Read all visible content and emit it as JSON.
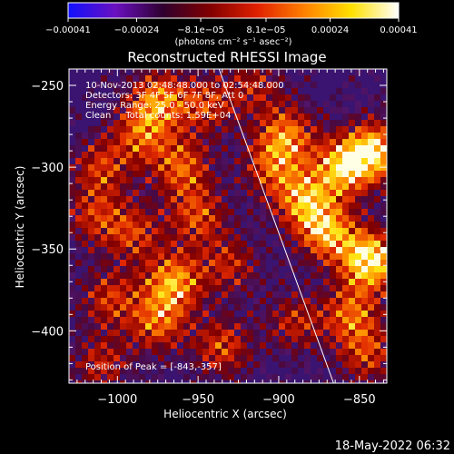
{
  "chart_data": {
    "type": "heatmap",
    "title": "Reconstructed RHESSI Image",
    "xlabel": "Heliocentric X (arcsec)",
    "ylabel": "Heliocentric Y (arcsec)",
    "xlim": [
      -1030,
      -833
    ],
    "ylim": [
      -432,
      -240
    ],
    "x_ticks": [
      -1000,
      -950,
      -900,
      -850
    ],
    "x_tick_labels": [
      "−1000",
      "−950",
      "−900",
      "−850"
    ],
    "y_ticks": [
      -250,
      -300,
      -350,
      -400
    ],
    "y_tick_labels": [
      "−250",
      "−300",
      "−350",
      "−400"
    ],
    "colorbar": {
      "range": [
        -0.00041,
        0.00041
      ],
      "tick_values": [
        -0.00041,
        -0.00024,
        -8.1e-05,
        8.1e-05,
        0.00024,
        0.00041
      ],
      "tick_labels": [
        "−0.00041",
        "−0.00024",
        "−8.1e−05",
        "8.1e−05",
        "0.00024",
        "0.00041"
      ],
      "unit": "(photons cm⁻² s⁻¹ asec⁻²)",
      "colors": [
        "#1010ff",
        "#6a10c0",
        "#300030",
        "#800000",
        "#e02000",
        "#ff8000",
        "#ffe000",
        "#ffffff"
      ]
    },
    "annotations": [
      "10-Nov-2013 02:48:48.000 to 02:54:48.000",
      "Detectors: 3F 4F 5F 6F 7F 8F, Att 0",
      "Energy Range: 25.0 - 50.0 keV",
      "Clean     Total counts: 1.59E+04"
    ],
    "peak_label": "Position of Peak = [-843,-357]",
    "peak": [
      -843,
      -357
    ],
    "limb_line": [
      [
        -937,
        -240
      ],
      [
        -866,
        -432
      ]
    ],
    "hotspots": [
      {
        "x": -975,
        "y": -258,
        "v": 0.65
      },
      {
        "x": -985,
        "y": -280,
        "v": 0.55
      },
      {
        "x": -1010,
        "y": -300,
        "v": 0.5
      },
      {
        "x": -945,
        "y": -262,
        "v": 0.5
      },
      {
        "x": -960,
        "y": -300,
        "v": 0.6
      },
      {
        "x": -950,
        "y": -330,
        "v": 0.55
      },
      {
        "x": -990,
        "y": -340,
        "v": 0.5
      },
      {
        "x": -1015,
        "y": -330,
        "v": 0.45
      },
      {
        "x": -965,
        "y": -370,
        "v": 0.75
      },
      {
        "x": -975,
        "y": -395,
        "v": 0.6
      },
      {
        "x": -1005,
        "y": -380,
        "v": 0.5
      },
      {
        "x": -1010,
        "y": -420,
        "v": 0.45
      },
      {
        "x": -935,
        "y": -410,
        "v": 0.55
      },
      {
        "x": -930,
        "y": -360,
        "v": 0.45
      },
      {
        "x": -905,
        "y": -300,
        "v": 0.5
      },
      {
        "x": -895,
        "y": -280,
        "v": 0.65
      },
      {
        "x": -885,
        "y": -320,
        "v": 0.7
      },
      {
        "x": -860,
        "y": -300,
        "v": 0.8
      },
      {
        "x": -840,
        "y": -290,
        "v": 0.85
      },
      {
        "x": -870,
        "y": -340,
        "v": 0.75
      },
      {
        "x": -843,
        "y": -357,
        "v": 1.0
      },
      {
        "x": -855,
        "y": -390,
        "v": 0.6
      },
      {
        "x": -845,
        "y": -415,
        "v": 0.5
      },
      {
        "x": -890,
        "y": -395,
        "v": 0.45
      },
      {
        "x": -915,
        "y": -250,
        "v": 0.4
      }
    ]
  },
  "footer": {
    "timestamp": "18-May-2022 06:32"
  }
}
